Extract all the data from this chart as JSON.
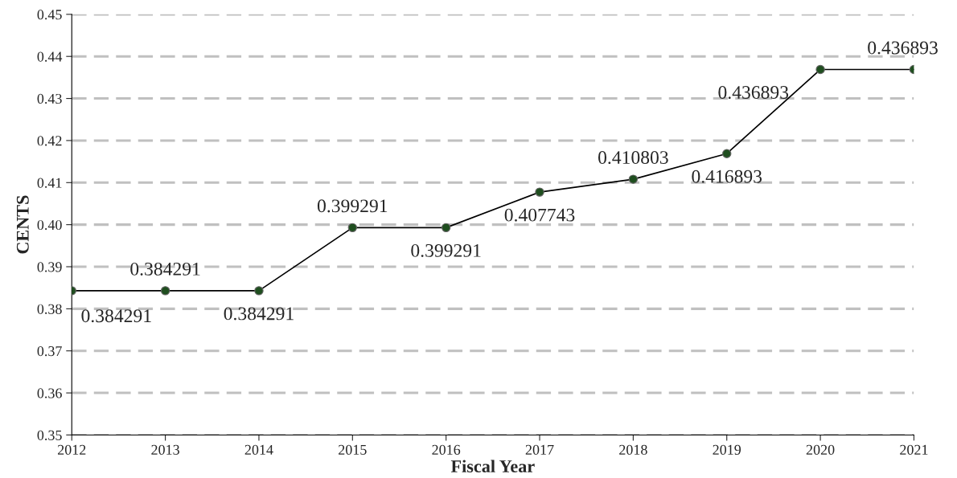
{
  "chart_data": {
    "type": "line",
    "xlabel": "Fiscal Year",
    "ylabel": "CENTS",
    "x": [
      2012,
      2013,
      2014,
      2015,
      2016,
      2017,
      2018,
      2019,
      2020,
      2021
    ],
    "series": [
      {
        "color": "#1f4e1f",
        "values": [
          0.384291,
          0.384291,
          0.384291,
          0.399291,
          0.399291,
          0.407743,
          0.410803,
          0.416893,
          0.436893,
          0.436893
        ]
      }
    ],
    "xlim": [
      2012,
      2021
    ],
    "xticks": [
      2012,
      2013,
      2014,
      2015,
      2016,
      2017,
      2018,
      2019,
      2020,
      2021
    ],
    "ylim": [
      0.35,
      0.45
    ],
    "yticks": [
      0.35,
      0.36,
      0.37,
      0.38,
      0.39,
      {
        "value": 0.4,
        "label": "0.40"
      },
      0.41,
      0.42,
      0.43,
      0.44,
      0.45
    ],
    "grid": "y",
    "marker": "circle",
    "line_style": "solid",
    "data_labels": true
  }
}
